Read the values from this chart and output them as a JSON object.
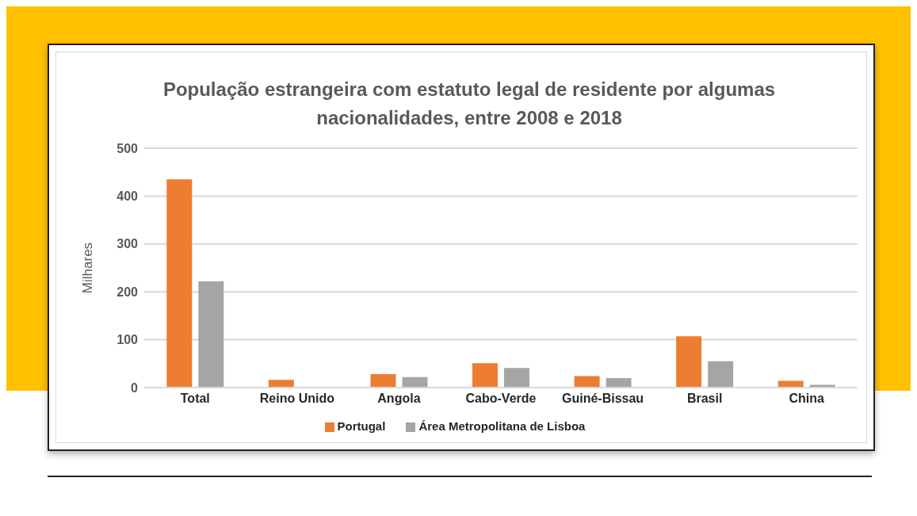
{
  "chart_data": {
    "type": "bar",
    "title": "População estrangeira com estatuto legal de residente por algumas nacionalidades, entre 2008 e 2018",
    "ylabel": "Milhares",
    "categories": [
      "Total",
      "Reino Unido",
      "Angola",
      "Cabo-Verde",
      "Guiné-Bissau",
      "Brasil",
      "China"
    ],
    "series": [
      {
        "name": "Portugal",
        "color": "#ed7d31",
        "values": [
          435,
          16,
          28,
          51,
          24,
          107,
          14
        ]
      },
      {
        "name": "Área Metropolitana de Lisboa",
        "color": "#a5a5a5",
        "values": [
          222,
          null,
          22,
          41,
          20,
          55,
          6
        ]
      }
    ],
    "ylim": [
      0,
      500
    ],
    "yticks": [
      0,
      100,
      200,
      300,
      400,
      500
    ],
    "grid": "y",
    "legend": "bottom"
  }
}
